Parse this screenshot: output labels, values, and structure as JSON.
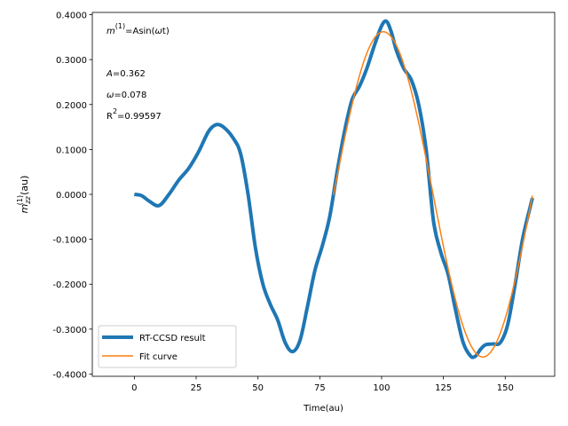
{
  "chart_data": {
    "type": "line",
    "xlabel": "Time(au)",
    "ylabel_main": "m",
    "ylabel_sub": "zz",
    "ylabel_sup": "(1)",
    "ylabel_unit": "(au)",
    "xlim": [
      -17,
      170
    ],
    "ylim": [
      -0.405,
      0.405
    ],
    "xticks": [
      0,
      25,
      50,
      75,
      100,
      125,
      150
    ],
    "yticks": [
      -0.4,
      -0.3,
      -0.2,
      -0.1,
      0.0,
      0.1,
      0.2,
      0.3,
      0.4
    ],
    "ytick_labels": [
      "-0.4000",
      "-0.3000",
      "-0.2000",
      "-0.1000",
      "0.0000",
      "0.1000",
      "0.2000",
      "0.3000",
      "0.4000"
    ],
    "annotations": {
      "formula_prefix": "m",
      "formula_sup": "(1)",
      "formula_rest_a": "=Asin(",
      "formula_omega": "ω",
      "formula_rest_b": "t)",
      "a_symbol": "A",
      "a_value": "=0.362",
      "omega_symbol": "ω",
      "omega_value": "=0.078",
      "r2_symbol": "R",
      "r2_sup": "2",
      "r2_value": "=0.99597"
    },
    "legend": {
      "placement": "lower-left",
      "entries": [
        "RT-CCSD result",
        "Fit curve"
      ]
    },
    "series": [
      {
        "name": "RT-CCSD result",
        "color": "#1f77b4",
        "x": [
          0,
          3,
          6,
          10,
          14,
          18,
          22,
          26,
          30,
          33,
          36,
          40,
          43,
          46,
          49,
          52,
          55,
          58,
          61,
          64,
          67,
          70,
          73,
          76,
          79,
          82,
          85,
          88,
          91,
          94,
          97,
          100,
          102,
          104,
          106,
          109,
          112,
          115,
          118,
          121,
          124,
          127,
          130,
          133,
          136,
          138,
          140,
          142,
          145,
          148,
          151,
          154,
          157,
          160,
          161
        ],
        "y": [
          0.0,
          -0.003,
          -0.015,
          -0.025,
          0.0,
          0.032,
          0.058,
          0.095,
          0.14,
          0.155,
          0.15,
          0.125,
          0.09,
          0.0,
          -0.12,
          -0.2,
          -0.245,
          -0.28,
          -0.33,
          -0.35,
          -0.325,
          -0.25,
          -0.17,
          -0.115,
          -0.05,
          0.05,
          0.14,
          0.21,
          0.24,
          0.28,
          0.33,
          0.375,
          0.385,
          0.36,
          0.32,
          0.28,
          0.255,
          0.2,
          0.1,
          -0.06,
          -0.13,
          -0.18,
          -0.26,
          -0.33,
          -0.36,
          -0.36,
          -0.345,
          -0.335,
          -0.333,
          -0.33,
          -0.29,
          -0.2,
          -0.1,
          -0.03,
          -0.008
        ]
      },
      {
        "name": "Fit curve",
        "color": "#ff7f0e",
        "amplitude": 0.362,
        "omega": 0.078,
        "x_start": 80.5,
        "x_end": 161
      }
    ]
  }
}
